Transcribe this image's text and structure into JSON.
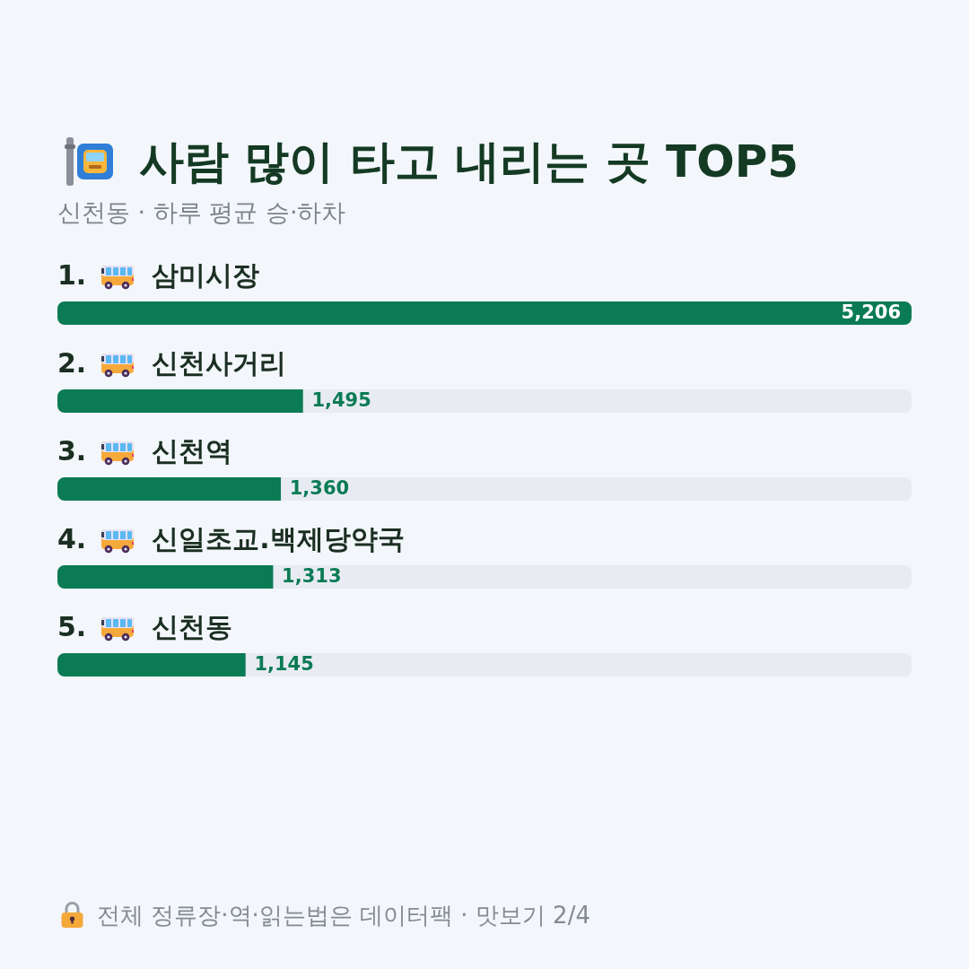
{
  "chart_data": {
    "type": "bar",
    "orientation": "horizontal",
    "title": "사람 많이 타고 내리는 곳 TOP5",
    "subtitle": "신천동 · 하루 평균 승·하차",
    "categories": [
      "1. 삼미시장",
      "2. 신천사거리",
      "3. 신천역",
      "4. 신일초교.백제당약국",
      "5. 신천동"
    ],
    "values": [
      5206,
      1495,
      1360,
      1313,
      1145
    ],
    "value_labels": [
      "5,206",
      "1,495",
      "1,360",
      "1,313",
      "1,145"
    ],
    "color": "#0b7b55",
    "tick_labels": "y",
    "annotations": [
      "전체 정류장·역·읽는법은 데이터팩 · 맛보기 2/4"
    ]
  }
}
